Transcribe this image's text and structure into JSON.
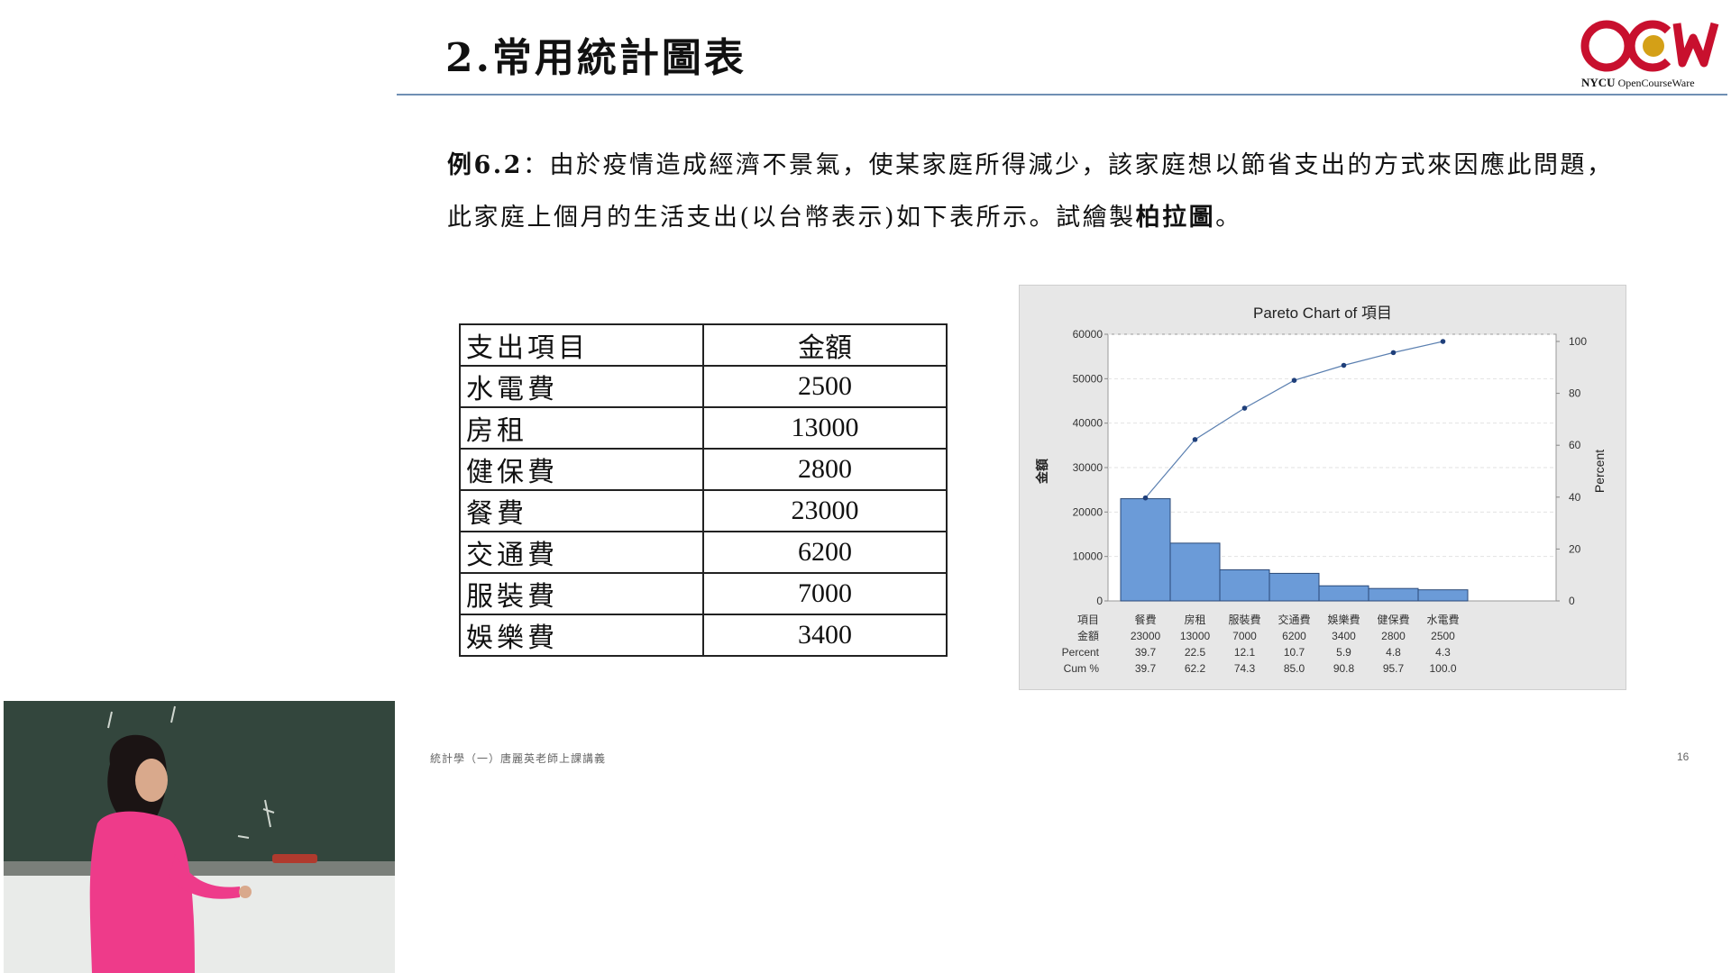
{
  "slide": {
    "title": "2.常用統計圖表",
    "example_label": "例6.2",
    "problem_part1": "：由於疫情造成經濟不景氣，使某家庭所得減少，該家庭想以節省支出的方式來因應此問題，此家庭上個月的生活支出(以台幣表示)如下表所示。試繪製",
    "problem_emph": "柏拉圖",
    "problem_end": "。",
    "footer": "統計學（一）唐麗英老師上課講義",
    "page_number": "16"
  },
  "logo": {
    "brand": "NYCU",
    "tagline": "OpenCourseWare",
    "colors": {
      "red": "#c8102e",
      "gold": "#d4a017"
    }
  },
  "table": {
    "headers": [
      "支出項目",
      "金額"
    ],
    "rows": [
      [
        "水電費",
        "2500"
      ],
      [
        "房租",
        "13000"
      ],
      [
        "健保費",
        "2800"
      ],
      [
        "餐費",
        "23000"
      ],
      [
        "交通費",
        "6200"
      ],
      [
        "服裝費",
        "7000"
      ],
      [
        "娛樂費",
        "3400"
      ]
    ]
  },
  "chart_data": {
    "type": "bar",
    "title": "Pareto Chart of 項目",
    "ylabel": "金額",
    "y2label": "Percent",
    "ylim": [
      0,
      60000
    ],
    "y2lim": [
      0,
      100
    ],
    "yticks": [
      0,
      10000,
      20000,
      30000,
      40000,
      50000,
      60000
    ],
    "y2ticks": [
      0,
      20,
      40,
      60,
      80,
      100
    ],
    "categories": [
      "餐費",
      "房租",
      "服裝費",
      "交通費",
      "娛樂費",
      "健保費",
      "水電費"
    ],
    "values": [
      23000,
      13000,
      7000,
      6200,
      3400,
      2800,
      2500
    ],
    "cum_percent": [
      39.7,
      62.2,
      74.3,
      85.0,
      90.8,
      95.7,
      100.0
    ],
    "bar_color": "#6b9bd8",
    "line_color": "#5a7fb0",
    "point_color": "#1f3f7a",
    "table_row_labels": [
      "項目",
      "金額",
      "Percent",
      "Cum %"
    ],
    "table_rows": {
      "amount": [
        "23000",
        "13000",
        "7000",
        "6200",
        "3400",
        "2800",
        "2500"
      ],
      "percent": [
        "39.7",
        "22.5",
        "12.1",
        "10.7",
        "5.9",
        "4.8",
        "4.3"
      ],
      "cum": [
        "39.7",
        "62.2",
        "74.3",
        "85.0",
        "90.8",
        "95.7",
        "100.0"
      ]
    }
  }
}
